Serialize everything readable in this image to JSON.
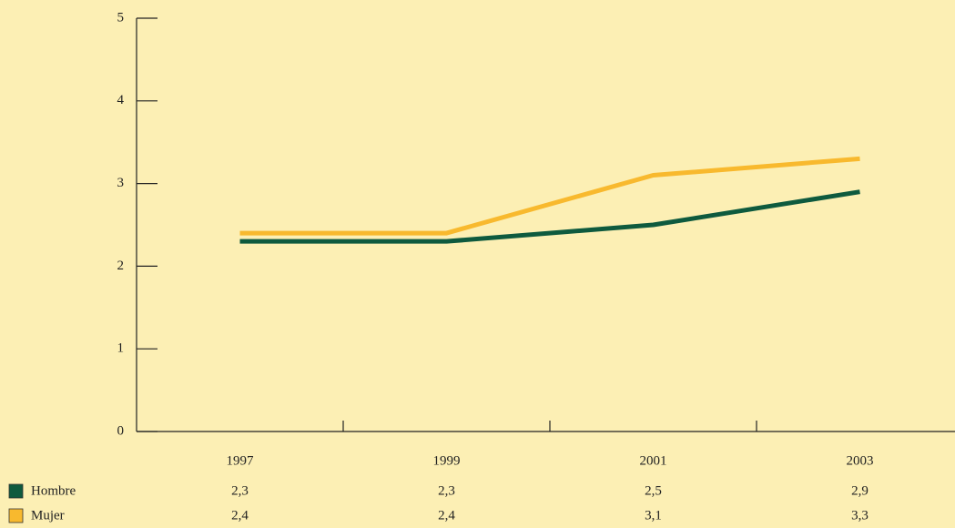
{
  "chart_data": {
    "type": "line",
    "categories": [
      "1997",
      "1999",
      "2001",
      "2003"
    ],
    "series": [
      {
        "name": "Hombre",
        "color": "#0e5a3e",
        "values": [
          2.3,
          2.3,
          2.5,
          2.9
        ],
        "value_labels": [
          "2,3",
          "2,3",
          "2,5",
          "2,9"
        ]
      },
      {
        "name": "Mujer",
        "color": "#f8b92e",
        "values": [
          2.4,
          2.4,
          3.1,
          3.3
        ],
        "value_labels": [
          "2,4",
          "2,4",
          "3,1",
          "3,3"
        ]
      }
    ],
    "ylim": [
      0,
      5
    ],
    "yticks": [
      0,
      1,
      2,
      3,
      4,
      5
    ],
    "grid": false
  }
}
